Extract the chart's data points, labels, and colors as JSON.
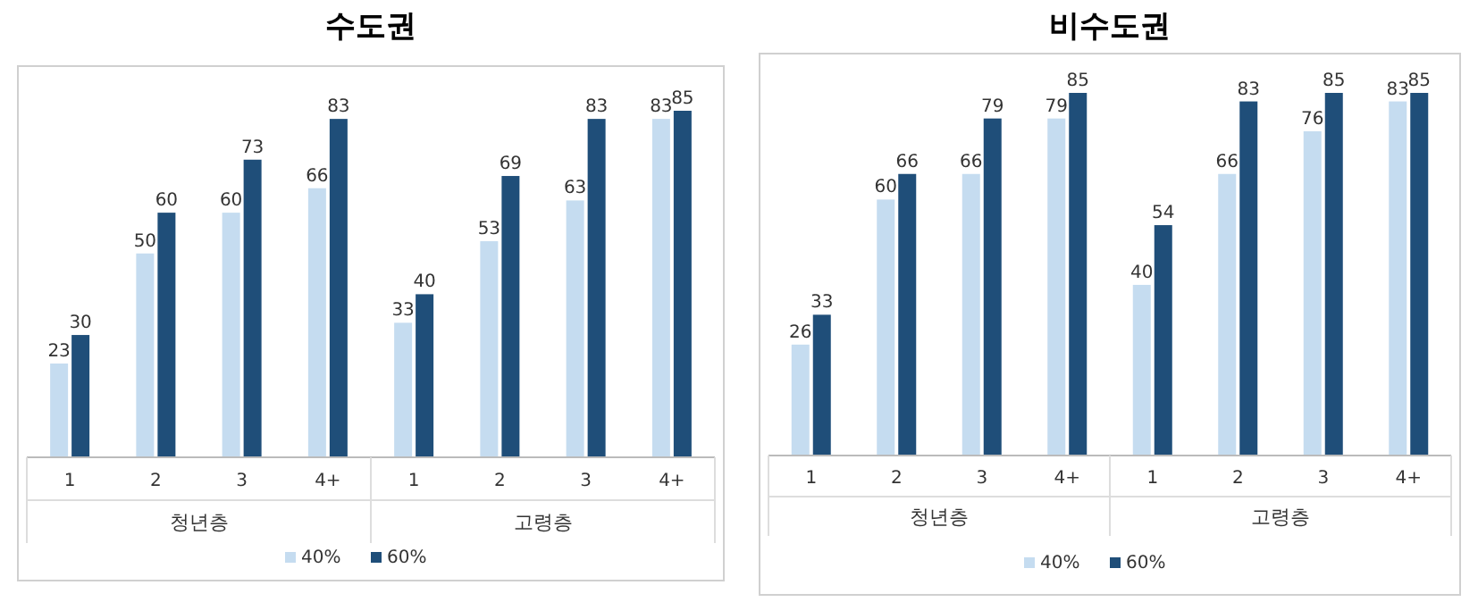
{
  "chart_data": [
    {
      "type": "bar",
      "title": "수도권",
      "categories": [
        "1",
        "2",
        "3",
        "4+",
        "1",
        "2",
        "3",
        "4+"
      ],
      "annotations": [
        "청년층",
        "고령층"
      ],
      "data_labels": true,
      "legend": "bottom",
      "series": [
        {
          "name": "40%",
          "color": "#c5dcf0",
          "values": [
            23,
            50,
            60,
            66,
            33,
            53,
            63,
            83
          ]
        },
        {
          "name": "60%",
          "color": "#1f4e79",
          "values": [
            30,
            60,
            73,
            83,
            40,
            69,
            83,
            85
          ]
        }
      ]
    },
    {
      "type": "bar",
      "title": "비수도권",
      "categories": [
        "1",
        "2",
        "3",
        "4+",
        "1",
        "2",
        "3",
        "4+"
      ],
      "annotations": [
        "청년층",
        "고령층"
      ],
      "data_labels": true,
      "legend": "bottom",
      "series": [
        {
          "name": "40%",
          "color": "#c5dcf0",
          "values": [
            26,
            60,
            66,
            79,
            40,
            66,
            76,
            83
          ]
        },
        {
          "name": "60%",
          "color": "#1f4e79",
          "values": [
            33,
            66,
            79,
            85,
            54,
            83,
            85,
            85
          ]
        }
      ]
    }
  ]
}
